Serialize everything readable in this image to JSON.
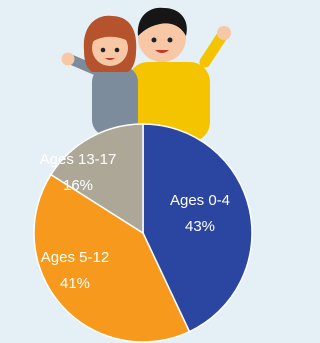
{
  "chart_data": {
    "type": "pie",
    "categories": [
      "Ages 0-4",
      "Ages 5-12",
      "Ages 13-17"
    ],
    "values": [
      43,
      41,
      16
    ],
    "value_labels": [
      "43%",
      "41%",
      "16%"
    ],
    "colors": [
      "#2b46a0",
      "#f7991c",
      "#aca796"
    ]
  }
}
